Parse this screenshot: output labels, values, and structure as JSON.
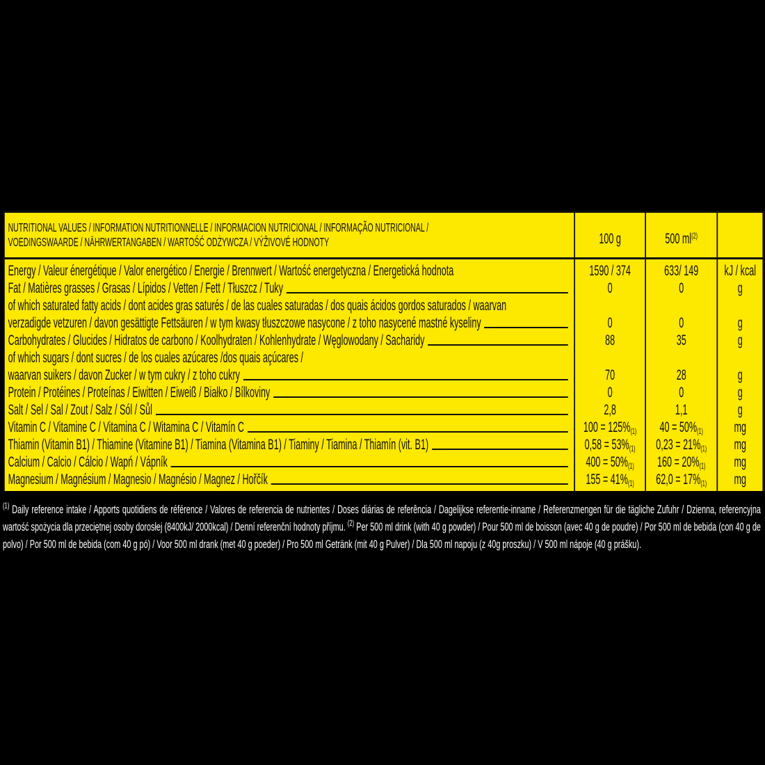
{
  "header": {
    "title_line1": "NUTRITIONAL VALUES / INFORMATION NUTRITIONNELLE / INFORMACION NUTRICIONAL / INFORMAÇÃO NUTRICIONAL /",
    "title_line2": "VOEDINGSWAARDE / NÄHRWERTANGABEN / WARTOŚĆ ODŻYWCZA / VÝŽIVOVÉ HODNOTY",
    "col_100g": "100 g",
    "col_500ml": "500 ml",
    "col_500ml_ref": "(2)",
    "col_unit": ""
  },
  "rows": [
    {
      "label": [
        "Energy / Valeur énergétique / Valor energético / Energie / Brennwert / Wartość energetyczna / Energetická hodnota"
      ],
      "per100g": "1590 / 374",
      "per100g_ref": "",
      "per500ml": "633/ 149",
      "per500ml_ref": "",
      "unit": "kJ / kcal"
    },
    {
      "label": [
        "Fat / Matières grasses / Grasas / Lípidos / Vetten / Fett / Tłuszcz / Tuky"
      ],
      "per100g": "0",
      "per100g_ref": "",
      "per500ml": "0",
      "per500ml_ref": "",
      "unit": "g"
    },
    {
      "label": [
        "of which saturated fatty acids / dont acides gras saturés / de las cuales saturadas / dos quais ácidos gordos saturados / waarvan",
        "verzadigde vetzuren / davon gesättigte Fettsäuren / w tym kwasy tłuszczowe nasycone / z toho nasycené mastné kyseliny"
      ],
      "per100g": "0",
      "per100g_ref": "",
      "per500ml": "0",
      "per500ml_ref": "",
      "unit": "g"
    },
    {
      "label": [
        "Carbohydrates / Glucides / Hidratos de carbono / Koolhydraten / Kohlenhydrate / Węglowodany / Sacharidy"
      ],
      "per100g": "88",
      "per100g_ref": "",
      "per500ml": "35",
      "per500ml_ref": "",
      "unit": "g"
    },
    {
      "label": [
        "of which sugars / dont sucres / de los cuales azúcares /dos quais açúcares /",
        "waarvan suikers / davon Zucker  / w tym cukry / z toho cukry"
      ],
      "per100g": "70",
      "per100g_ref": "",
      "per500ml": "28",
      "per500ml_ref": "",
      "unit": "g"
    },
    {
      "label": [
        "Protein / Protéines / Proteínas / Eiwitten / Eiweiß / Białko / Bílkoviny"
      ],
      "per100g": "0",
      "per100g_ref": "",
      "per500ml": "0",
      "per500ml_ref": "",
      "unit": "g"
    },
    {
      "label": [
        "Salt / Sel / Sal / Zout / Salz / Sól / Sůl"
      ],
      "per100g": "2,8",
      "per100g_ref": "",
      "per500ml": "1,1",
      "per500ml_ref": "",
      "unit": "g"
    },
    {
      "label": [
        "Vitamin C / Vitamine C / Vitamina C / Witamina C / Vitamín C"
      ],
      "per100g": "100 = 125%",
      "per100g_ref": "(1)",
      "per500ml": "40 = 50%",
      "per500ml_ref": "(1)",
      "unit": "mg"
    },
    {
      "label": [
        "Thiamin (Vitamin B1) / Thiamine (Vitamine B1) / Tiamina (Vitamina B1) / Tiaminy / Tiamina / Thiamín (vit. B1)"
      ],
      "per100g": "0,58 = 53%",
      "per100g_ref": "(1)",
      "per500ml": "0,23 = 21%",
      "per500ml_ref": "(1)",
      "unit": "mg"
    },
    {
      "label": [
        "Calcium / Calcio / Cálcio / Wapń / Vápník"
      ],
      "per100g": "400 = 50%",
      "per100g_ref": "(1)",
      "per500ml": "160 = 20%",
      "per500ml_ref": "(1)",
      "unit": "mg"
    },
    {
      "label": [
        "Magnesium / Magnésium / Magnesio / Magnésio / Magnez / Hořčík"
      ],
      "per100g": "155 = 41%",
      "per100g_ref": "(1)",
      "per500ml": "62,0 = 17%",
      "per500ml_ref": "(1)",
      "unit": "mg"
    }
  ],
  "footer": {
    "ref1": "(1)",
    "text1": " Daily reference intake / Apports quotidiens de référence / Valores de referencia de nutrientes / Doses diárias de referência / Dagelijkse referentie-inname / Referenzmengen für die tägliche Zufuhr / Dzienna, referencyjna wartość spożycia dla przeciętnej osoby dorosłej (8400kJ/ 2000kcal) / Denní referenční hodnoty příjmu. ",
    "ref2": "(2)",
    "text2": " Per 500 ml drink (with 40 g powder) / Pour 500 ml de boisson (avec 40 g de poudre) / Por 500 ml de bebida (con 40 g de polvo) / Por 500 ml de bebida (com 40 g pó) / Voor 500 ml drank (met 40 g poeder) / Pro 500 ml Getränk (mit 40 g Pulver) / Dla 500 ml napoju (z 40g proszku) / V 500 ml nápoje (40 g prášku)."
  },
  "colors": {
    "background": "#000000",
    "label": "#fde800",
    "text": "#111111",
    "footer_text": "#ffffff"
  }
}
